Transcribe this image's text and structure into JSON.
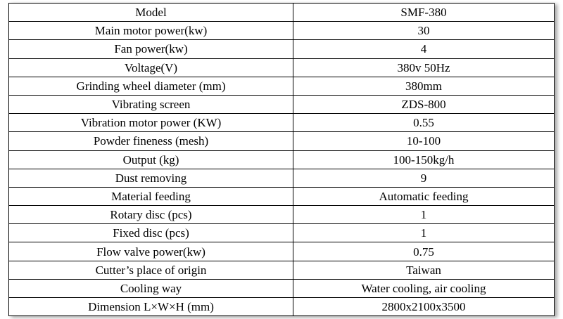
{
  "table": {
    "rows": [
      [
        "Model",
        "SMF-380"
      ],
      [
        "Main motor power(kw)",
        "30"
      ],
      [
        "Fan power(kw)",
        "4"
      ],
      [
        "Voltage(V)",
        "380v 50Hz"
      ],
      [
        "Grinding wheel diameter (mm)",
        "380mm"
      ],
      [
        "Vibrating screen",
        "ZDS-800"
      ],
      [
        "Vibration motor power (KW)",
        "0.55"
      ],
      [
        "Powder fineness (mesh)",
        "10-100"
      ],
      [
        "Output (kg)",
        "100-150kg/h"
      ],
      [
        "Dust removing",
        "9"
      ],
      [
        "Material feeding",
        "Automatic feeding"
      ],
      [
        "Rotary disc (pcs)",
        "1"
      ],
      [
        "Fixed disc (pcs)",
        "1"
      ],
      [
        "Flow valve power(kw)",
        "0.75"
      ],
      [
        "Cutter’s place of origin",
        "Taiwan"
      ],
      [
        "Cooling way",
        "Water cooling, air cooling"
      ],
      [
        "Dimension L×W×H (mm)",
        "2800x2100x3500"
      ]
    ]
  }
}
